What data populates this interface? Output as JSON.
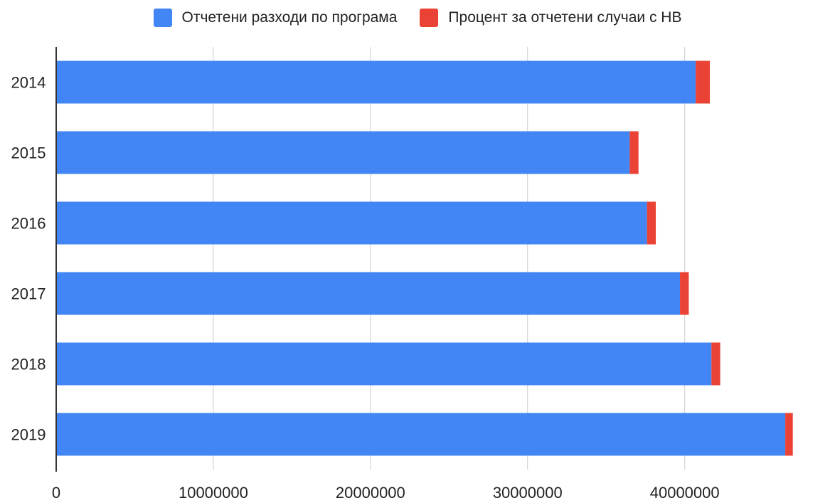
{
  "chart_data": {
    "type": "bar",
    "orientation": "horizontal",
    "stacked": true,
    "categories": [
      "2014",
      "2015",
      "2016",
      "2017",
      "2018",
      "2019"
    ],
    "series": [
      {
        "name": "Отчетени разходи по програма",
        "color": "#4285f4",
        "values": [
          40700000,
          36500000,
          37600000,
          39700000,
          41700000,
          46400000
        ]
      },
      {
        "name": "Процент за отчетени случаи с НВ",
        "color": "#ea4335",
        "values": [
          900000,
          560000,
          560000,
          560000,
          560000,
          480000
        ]
      }
    ],
    "x_ticks": [
      "0",
      "10000000",
      "20000000",
      "30000000",
      "40000000"
    ],
    "xlim": [
      0,
      50000000
    ],
    "grid": true,
    "legend_position": "top"
  }
}
